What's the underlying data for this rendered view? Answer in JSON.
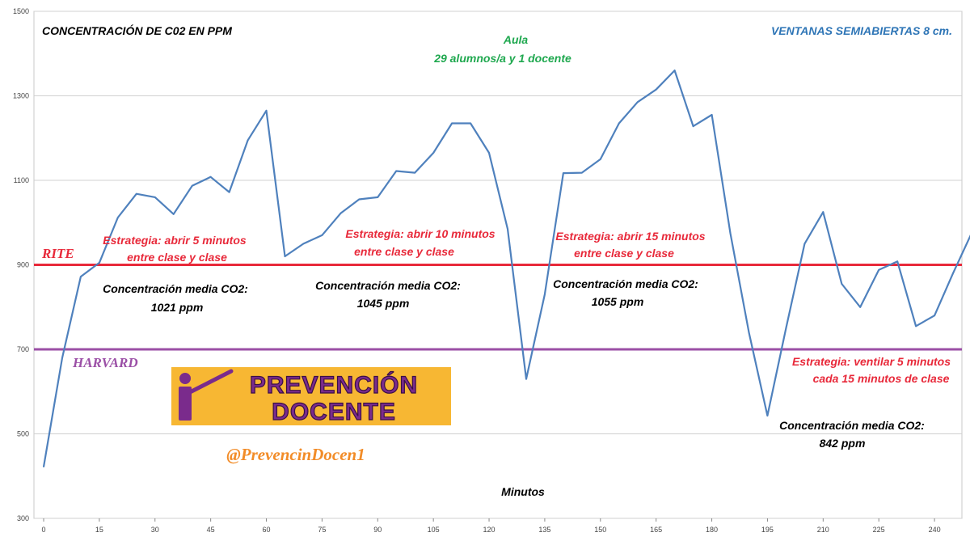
{
  "chart_data": {
    "type": "line",
    "title": "CONCENTRACIÓN  DE C02  EN  PPM",
    "subtitle_right": "VENTANAS SEMIABIERTAS 8 cm.",
    "aula": {
      "line1": "Aula",
      "line2": "29 alumnos/a  y 1 docente"
    },
    "xlabel": "Minutos",
    "ylabel": "",
    "xlim": [
      0,
      250
    ],
    "ylim": [
      300,
      1500
    ],
    "x_ticks": [
      0,
      15,
      30,
      45,
      60,
      75,
      90,
      105,
      120,
      135,
      150,
      165,
      180,
      195,
      210,
      225,
      240
    ],
    "y_ticks": [
      300,
      500,
      700,
      900,
      1100,
      1300,
      1500
    ],
    "grid": "horizontal",
    "series": [
      {
        "color": "#4F81BD",
        "x": [
          0,
          5,
          10,
          15,
          20,
          25,
          30,
          35,
          40,
          45,
          50,
          55,
          60,
          65,
          70,
          75,
          80,
          85,
          90,
          95,
          100,
          105,
          110,
          115,
          120,
          125,
          130,
          135,
          140,
          145,
          150,
          155,
          160,
          165,
          170,
          175,
          180,
          185,
          190,
          195,
          200,
          205,
          210,
          215,
          220,
          225,
          230,
          235,
          240,
          245,
          250
        ],
        "y": [
          422,
          680,
          872,
          905,
          1012,
          1068,
          1060,
          1020,
          1087,
          1108,
          1072,
          1195,
          1265,
          920,
          950,
          970,
          1022,
          1055,
          1060,
          1122,
          1118,
          1165,
          1235,
          1235,
          1165,
          985,
          630,
          830,
          1117,
          1118,
          1150,
          1235,
          1285,
          1315,
          1360,
          1228,
          1255,
          975,
          740,
          543,
          750,
          950,
          1025,
          855,
          800,
          888,
          908,
          755,
          780,
          880,
          975
        ]
      }
    ],
    "reference_lines": [
      {
        "label": "RITE",
        "y": 900,
        "color": "#E8293A"
      },
      {
        "label": "HARVARD",
        "y": 700,
        "color": "#9B4FA6"
      }
    ],
    "annotations": {
      "strategy1": {
        "line1": "Estrategia:  abrir 5 minutos",
        "line2": "entre clase y clase"
      },
      "strategy2": {
        "line1": "Estrategia:  abrir 10 minutos",
        "line2": "entre clase y clase"
      },
      "strategy3": {
        "line1": "Estrategia:  abrir 15 minutos",
        "line2": "entre clase y clase"
      },
      "strategy4": {
        "line1": "Estrategia:  ventilar  5 minutos",
        "line2": "cada 15 minutos de clase"
      },
      "mean1": {
        "line1": "Concentración media CO2:",
        "line2": "1021  ppm"
      },
      "mean2": {
        "line1": "Concentración media CO2:",
        "line2": "1045 ppm"
      },
      "mean3": {
        "line1": "Concentración media CO2:",
        "line2": "1055 ppm"
      },
      "mean4": {
        "line1": "Concentración media CO2:",
        "line2": "842   ppm"
      }
    },
    "colors": {
      "annotation_red": "#E8293A",
      "aula_green": "#1FA84F",
      "subtitle_blue": "#2E75B6",
      "handle_orange": "#F28C28",
      "logo_bg": "#F7B733",
      "logo_purple": "#7A2B8C"
    }
  },
  "logo": {
    "line1": "PREVENCIÓN",
    "line2": "DOCENTE",
    "icon": "teacher-pointer-icon"
  },
  "handle": "@PrevencinDocen1"
}
